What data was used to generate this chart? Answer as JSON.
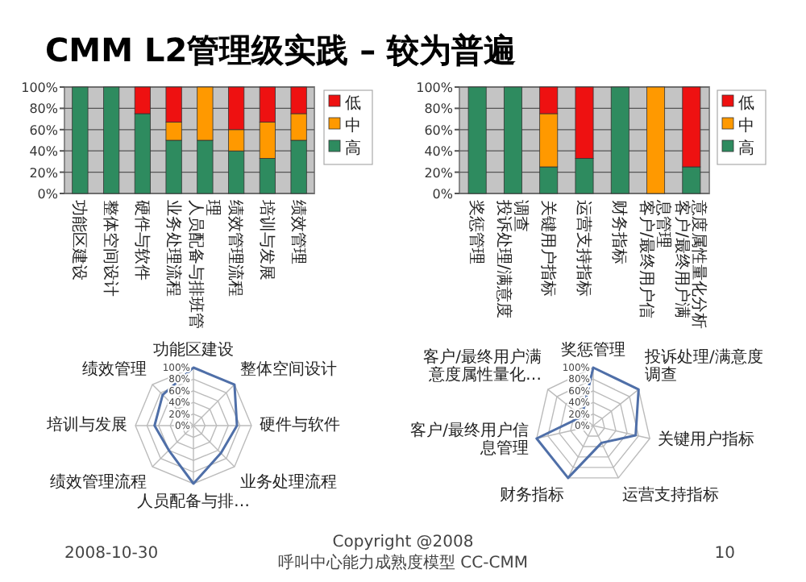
{
  "chart_data": [
    {
      "type": "bar",
      "title": "CMM L2管理级实践 – 较为普遍",
      "stacked": true,
      "legend": "right",
      "grid": "y",
      "ylim": [
        0,
        100
      ],
      "yticks": [
        {
          "value": 0,
          "label": "0%"
        },
        {
          "value": 20,
          "label": "20%"
        },
        {
          "value": 40,
          "label": "40%"
        },
        {
          "value": 60,
          "label": "60%"
        },
        {
          "value": 80,
          "label": "80%"
        },
        {
          "value": 100,
          "label": "100%"
        }
      ],
      "categories": [
        "功能区建设",
        "整体空间设计",
        "硬件与软件",
        "业务处理流程",
        "人员配备与排班管理",
        "绩效管理流程",
        "培训与发展",
        "绩效管理"
      ],
      "series": [
        {
          "name": "高",
          "color": "#2e8b5f",
          "values": [
            100,
            100,
            75,
            50,
            50,
            40,
            33,
            50
          ]
        },
        {
          "name": "中",
          "color": "#ff9900",
          "values": [
            0,
            0,
            0,
            17,
            50,
            20,
            34,
            25
          ]
        },
        {
          "name": "低",
          "color": "#ee1111",
          "values": [
            0,
            0,
            25,
            33,
            0,
            40,
            33,
            25
          ]
        }
      ]
    },
    {
      "type": "bar",
      "stacked": true,
      "legend": "right",
      "grid": "y",
      "ylim": [
        0,
        100
      ],
      "yticks": [
        {
          "value": 0,
          "label": "0%"
        },
        {
          "value": 20,
          "label": "20%"
        },
        {
          "value": 40,
          "label": "40%"
        },
        {
          "value": 60,
          "label": "60%"
        },
        {
          "value": 80,
          "label": "80%"
        },
        {
          "value": 100,
          "label": "100%"
        }
      ],
      "categories": [
        "奖惩管理",
        "投诉处理/满意度调查",
        "关键用户指标",
        "运营支持指标",
        "财务指标",
        "客户/最终用户信息管理",
        "客户/最终用户满意度属性量化分析"
      ],
      "series": [
        {
          "name": "高",
          "color": "#2e8b5f",
          "values": [
            100,
            100,
            25,
            33,
            100,
            0,
            25
          ]
        },
        {
          "name": "中",
          "color": "#ff9900",
          "values": [
            0,
            0,
            50,
            0,
            0,
            100,
            0
          ]
        },
        {
          "name": "低",
          "color": "#ee1111",
          "values": [
            0,
            0,
            25,
            67,
            0,
            0,
            75
          ]
        }
      ]
    },
    {
      "type": "radar",
      "grid": true,
      "ylim": [
        0,
        100
      ],
      "yticks": [
        {
          "value": 0,
          "label": "0%"
        },
        {
          "value": 20,
          "label": "20%"
        },
        {
          "value": 40,
          "label": "40%"
        },
        {
          "value": 60,
          "label": "60%"
        },
        {
          "value": 80,
          "label": "80%"
        },
        {
          "value": 100,
          "label": "100%"
        }
      ],
      "categories": [
        "功能区建设",
        "整体空间设计",
        "硬件与软件",
        "业务处理流程",
        "人员配备与排…",
        "绩效管理流程",
        "培训与发展",
        "绩效管理"
      ],
      "series": [
        {
          "color": "#4f6fa8",
          "values": [
            100,
            100,
            75,
            67,
            100,
            60,
            67,
            75
          ]
        }
      ]
    },
    {
      "type": "radar",
      "grid": true,
      "ylim": [
        0,
        100
      ],
      "yticks": [
        {
          "value": 0,
          "label": "0%"
        },
        {
          "value": 20,
          "label": "20%"
        },
        {
          "value": 40,
          "label": "40%"
        },
        {
          "value": 60,
          "label": "60%"
        },
        {
          "value": 80,
          "label": "80%"
        },
        {
          "value": 100,
          "label": "100%"
        }
      ],
      "categories": [
        "奖惩管理",
        "投诉处理/满意度调查",
        "关键用户指标",
        "运营支持指标",
        "财务指标",
        "客户/最终用户信息管理",
        "客户/最终用户满意度属性量化…"
      ],
      "series": [
        {
          "color": "#4f6fa8",
          "values": [
            100,
            100,
            75,
            33,
            100,
            100,
            25
          ]
        }
      ],
      "annotations": [
        "2008-10-30",
        "Copyright @2008",
        "呼叫中心能力成熟度模型 CC-CMM",
        "10"
      ]
    }
  ]
}
